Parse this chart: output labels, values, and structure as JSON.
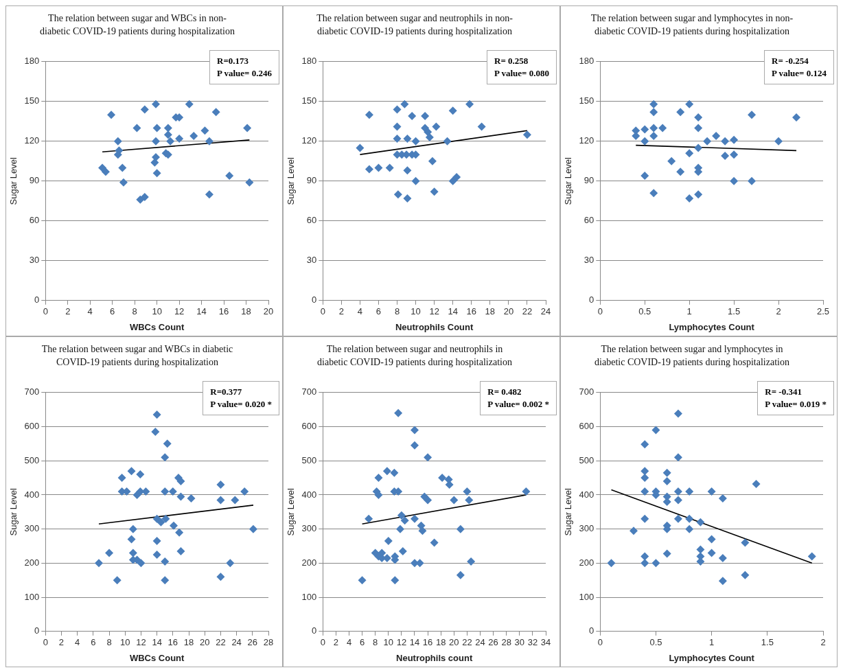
{
  "chart_data": [
    {
      "type": "scatter",
      "title": "The relation between sugar and WBCs in non-diabetic COVID-19 patients during hospitalization",
      "xlabel": "WBCs Count",
      "ylabel": "Sugar Level",
      "annotations": [
        "R=0.173",
        "P value= 0.246"
      ],
      "xlim": [
        0,
        20
      ],
      "xticks": [
        0,
        2,
        4,
        6,
        8,
        10,
        12,
        14,
        16,
        18,
        20
      ],
      "ylim": [
        0,
        180
      ],
      "yticks": [
        0,
        30,
        60,
        90,
        120,
        150,
        180
      ],
      "grid": "y",
      "legend": false,
      "marker": "diamond",
      "series": [
        {
          "color": "#4a7ebb",
          "x": [
            5.1,
            5.4,
            5.9,
            6.5,
            6.5,
            6.6,
            6.9,
            7,
            8.2,
            8.5,
            8.9,
            8.9,
            9.9,
            9.9,
            9.8,
            9.9,
            10,
            10,
            11,
            10.8,
            11,
            11,
            11.2,
            11.7,
            12,
            12,
            12.9,
            13.3,
            14.3,
            14.7,
            14.7,
            15.3,
            16.5,
            18.1,
            18.3
          ],
          "values": [
            100,
            97,
            140,
            120,
            110,
            113,
            100,
            89,
            130,
            76,
            78,
            144,
            148,
            120,
            104,
            108,
            96,
            130,
            130,
            111,
            110,
            125,
            120,
            138,
            138,
            122,
            148,
            124,
            128,
            120,
            80,
            142,
            94,
            130,
            89
          ]
        },
        {
          "type": "line",
          "marker": "none",
          "color": "#000000",
          "x": [
            5.1,
            18.3
          ],
          "values": [
            112,
            121
          ]
        }
      ]
    },
    {
      "type": "scatter",
      "title": "The relation between sugar and neutrophils in non-diabetic COVID-19 patients during hospitalization",
      "xlabel": "Neutrophils Count",
      "ylabel": "Sugar Level",
      "annotations": [
        "R= 0.258",
        "P value= 0.080"
      ],
      "xlim": [
        0,
        24
      ],
      "xticks": [
        0,
        2,
        4,
        6,
        8,
        10,
        12,
        14,
        16,
        18,
        20,
        22,
        24
      ],
      "ylim": [
        0,
        180
      ],
      "yticks": [
        0,
        30,
        60,
        90,
        120,
        150,
        180
      ],
      "grid": "y",
      "legend": false,
      "marker": "diamond",
      "series": [
        {
          "color": "#4a7ebb",
          "x": [
            4,
            5,
            5,
            6,
            7.2,
            8,
            8,
            8,
            8,
            8.1,
            8.5,
            8.8,
            9,
            9.1,
            9.1,
            9.1,
            9.6,
            9.6,
            10,
            10,
            10,
            11,
            11,
            11.3,
            11.5,
            11.8,
            12,
            12.2,
            13.4,
            14,
            14,
            14.4,
            15.8,
            17.1,
            22
          ],
          "values": [
            115,
            140,
            99,
            100,
            100,
            144,
            131,
            122,
            110,
            80,
            110,
            148,
            110,
            122,
            98,
            77,
            139,
            110,
            120,
            110,
            90,
            139,
            130,
            127,
            123,
            105,
            82,
            131,
            120,
            143,
            90,
            93,
            148,
            131,
            125
          ]
        },
        {
          "type": "line",
          "marker": "none",
          "color": "#000000",
          "x": [
            4,
            22
          ],
          "values": [
            110,
            128
          ]
        }
      ]
    },
    {
      "type": "scatter",
      "title": "The relation between sugar and lymphocytes in non-diabetic COVID-19 patients during hospitalization",
      "xlabel": "Lymphocytes Count",
      "ylabel": "Sugar Level",
      "annotations": [
        "R= -0.254",
        "P value= 0.124"
      ],
      "xlim": [
        0,
        2.5
      ],
      "xticks": [
        0,
        0.5,
        1,
        1.5,
        2,
        2.5
      ],
      "ylim": [
        0,
        180
      ],
      "yticks": [
        0,
        30,
        60,
        90,
        120,
        150,
        180
      ],
      "grid": "y",
      "legend": false,
      "marker": "diamond",
      "series": [
        {
          "color": "#4a7ebb",
          "x": [
            0.4,
            0.4,
            0.5,
            0.5,
            0.5,
            0.6,
            0.6,
            0.6,
            0.6,
            0.6,
            0.7,
            0.8,
            0.9,
            0.9,
            1,
            1,
            1,
            1.1,
            1.1,
            1.1,
            1.1,
            1.1,
            1.1,
            1.2,
            1.3,
            1.4,
            1.4,
            1.5,
            1.5,
            1.5,
            1.7,
            1.7,
            2,
            2.2
          ],
          "values": [
            128,
            124,
            129,
            120,
            94,
            148,
            142,
            130,
            124,
            81,
            130,
            105,
            142,
            97,
            148,
            111,
            77,
            138,
            130,
            115,
            100,
            97,
            80,
            120,
            124,
            120,
            109,
            121,
            110,
            90,
            140,
            90,
            120,
            138
          ]
        },
        {
          "type": "line",
          "marker": "none",
          "color": "#000000",
          "x": [
            0.4,
            2.2
          ],
          "values": [
            117,
            113
          ]
        }
      ]
    },
    {
      "type": "scatter",
      "title": "The relation between sugar and WBCs in diabetic COVID-19 patients during hospitalization",
      "xlabel": "WBCs Count",
      "ylabel": "Sugar Level",
      "annotations": [
        "R=0.377",
        "P value= 0.020 *"
      ],
      "xlim": [
        0,
        28
      ],
      "xticks": [
        0,
        2,
        4,
        6,
        8,
        10,
        12,
        14,
        16,
        18,
        20,
        22,
        24,
        26,
        28
      ],
      "ylim": [
        0,
        700
      ],
      "yticks": [
        0,
        100,
        200,
        300,
        400,
        500,
        600,
        700
      ],
      "grid": "y",
      "legend": false,
      "marker": "diamond",
      "series": [
        {
          "color": "#4a7ebb",
          "x": [
            6.7,
            8,
            9,
            9.6,
            9.6,
            10.2,
            10.8,
            11,
            10.8,
            11,
            11,
            11.5,
            11.5,
            11.9,
            12,
            11.9,
            12.6,
            13.8,
            14,
            14,
            14,
            14,
            14.5,
            15,
            15.3,
            15,
            15.1,
            15,
            15,
            16,
            16.1,
            16.7,
            16.8,
            17,
            17,
            17,
            18.3,
            22,
            22,
            22,
            23.2,
            23.8,
            25,
            26.1
          ],
          "values": [
            200,
            230,
            150,
            450,
            410,
            410,
            470,
            300,
            270,
            230,
            210,
            210,
            400,
            460,
            200,
            410,
            410,
            585,
            635,
            330,
            265,
            225,
            320,
            510,
            550,
            410,
            330,
            205,
            150,
            410,
            310,
            450,
            290,
            440,
            395,
            235,
            390,
            430,
            385,
            160,
            200,
            385,
            410,
            300
          ]
        },
        {
          "type": "line",
          "marker": "none",
          "color": "#000000",
          "x": [
            6.7,
            26.1
          ],
          "values": [
            315,
            370
          ]
        }
      ]
    },
    {
      "type": "scatter",
      "title": "The relation between sugar and neutrophils in diabetic COVID-19 patients during hospitalization",
      "xlabel": "Neutrophils count",
      "ylabel": "Sugar Level",
      "annotations": [
        "R= 0.482",
        "P value= 0.002 *"
      ],
      "xlim": [
        0,
        34
      ],
      "xticks": [
        0,
        2,
        4,
        6,
        8,
        10,
        12,
        14,
        16,
        18,
        20,
        22,
        24,
        26,
        28,
        30,
        32,
        34
      ],
      "ylim": [
        0,
        700
      ],
      "yticks": [
        0,
        100,
        200,
        300,
        400,
        500,
        600,
        700
      ],
      "grid": "y",
      "legend": false,
      "marker": "diamond",
      "series": [
        {
          "color": "#4a7ebb",
          "x": [
            6,
            7,
            8,
            8.2,
            8.5,
            8.5,
            8.5,
            9,
            9,
            9.8,
            9.8,
            10,
            10.9,
            10.9,
            11,
            11,
            11,
            11.5,
            11.5,
            11.8,
            12,
            12.2,
            12.5,
            14,
            14,
            14,
            14,
            14.8,
            15,
            15.2,
            15.5,
            16,
            16,
            17,
            18.2,
            19.2,
            19.3,
            20,
            21,
            21,
            22,
            22.3,
            22.6,
            31
          ],
          "values": [
            150,
            330,
            230,
            410,
            450,
            400,
            220,
            215,
            230,
            470,
            215,
            265,
            465,
            410,
            210,
            150,
            220,
            640,
            410,
            300,
            340,
            235,
            325,
            590,
            545,
            330,
            200,
            200,
            310,
            295,
            395,
            385,
            510,
            260,
            450,
            445,
            430,
            385,
            300,
            165,
            410,
            385,
            205,
            410
          ]
        },
        {
          "type": "line",
          "marker": "none",
          "color": "#000000",
          "x": [
            6,
            31
          ],
          "values": [
            315,
            400
          ]
        }
      ]
    },
    {
      "type": "scatter",
      "title": "The relation between sugar and lymphocytes in diabetic COVID-19 patients during hospitalization",
      "xlabel": "Lymphocytes Count",
      "ylabel": "Sugar Level",
      "annotations": [
        "R= -0.341",
        "P value= 0.019 *"
      ],
      "xlim": [
        0,
        2
      ],
      "xticks": [
        0,
        0.5,
        1,
        1.5,
        2
      ],
      "ylim": [
        0,
        700
      ],
      "yticks": [
        0,
        100,
        200,
        300,
        400,
        500,
        600,
        700
      ],
      "grid": "y",
      "legend": false,
      "marker": "diamond",
      "series": [
        {
          "color": "#4a7ebb",
          "x": [
            0.1,
            0.3,
            0.4,
            0.4,
            0.4,
            0.4,
            0.4,
            0.4,
            0.4,
            0.5,
            0.5,
            0.5,
            0.5,
            0.6,
            0.6,
            0.6,
            0.6,
            0.6,
            0.6,
            0.6,
            0.7,
            0.7,
            0.7,
            0.7,
            0.7,
            0.8,
            0.8,
            0.8,
            0.9,
            0.9,
            0.9,
            0.9,
            1,
            1,
            1,
            1.1,
            1.1,
            1.1,
            1.3,
            1.3,
            1.4,
            1.9
          ],
          "values": [
            200,
            295,
            548,
            470,
            450,
            410,
            330,
            220,
            200,
            590,
            410,
            400,
            200,
            465,
            440,
            395,
            380,
            310,
            300,
            228,
            638,
            510,
            410,
            385,
            330,
            410,
            330,
            300,
            320,
            240,
            220,
            205,
            410,
            270,
            230,
            390,
            215,
            148,
            260,
            165,
            432,
            220
          ]
        },
        {
          "type": "line",
          "marker": "none",
          "color": "#000000",
          "x": [
            0.1,
            1.9
          ],
          "values": [
            415,
            200
          ]
        }
      ]
    }
  ]
}
